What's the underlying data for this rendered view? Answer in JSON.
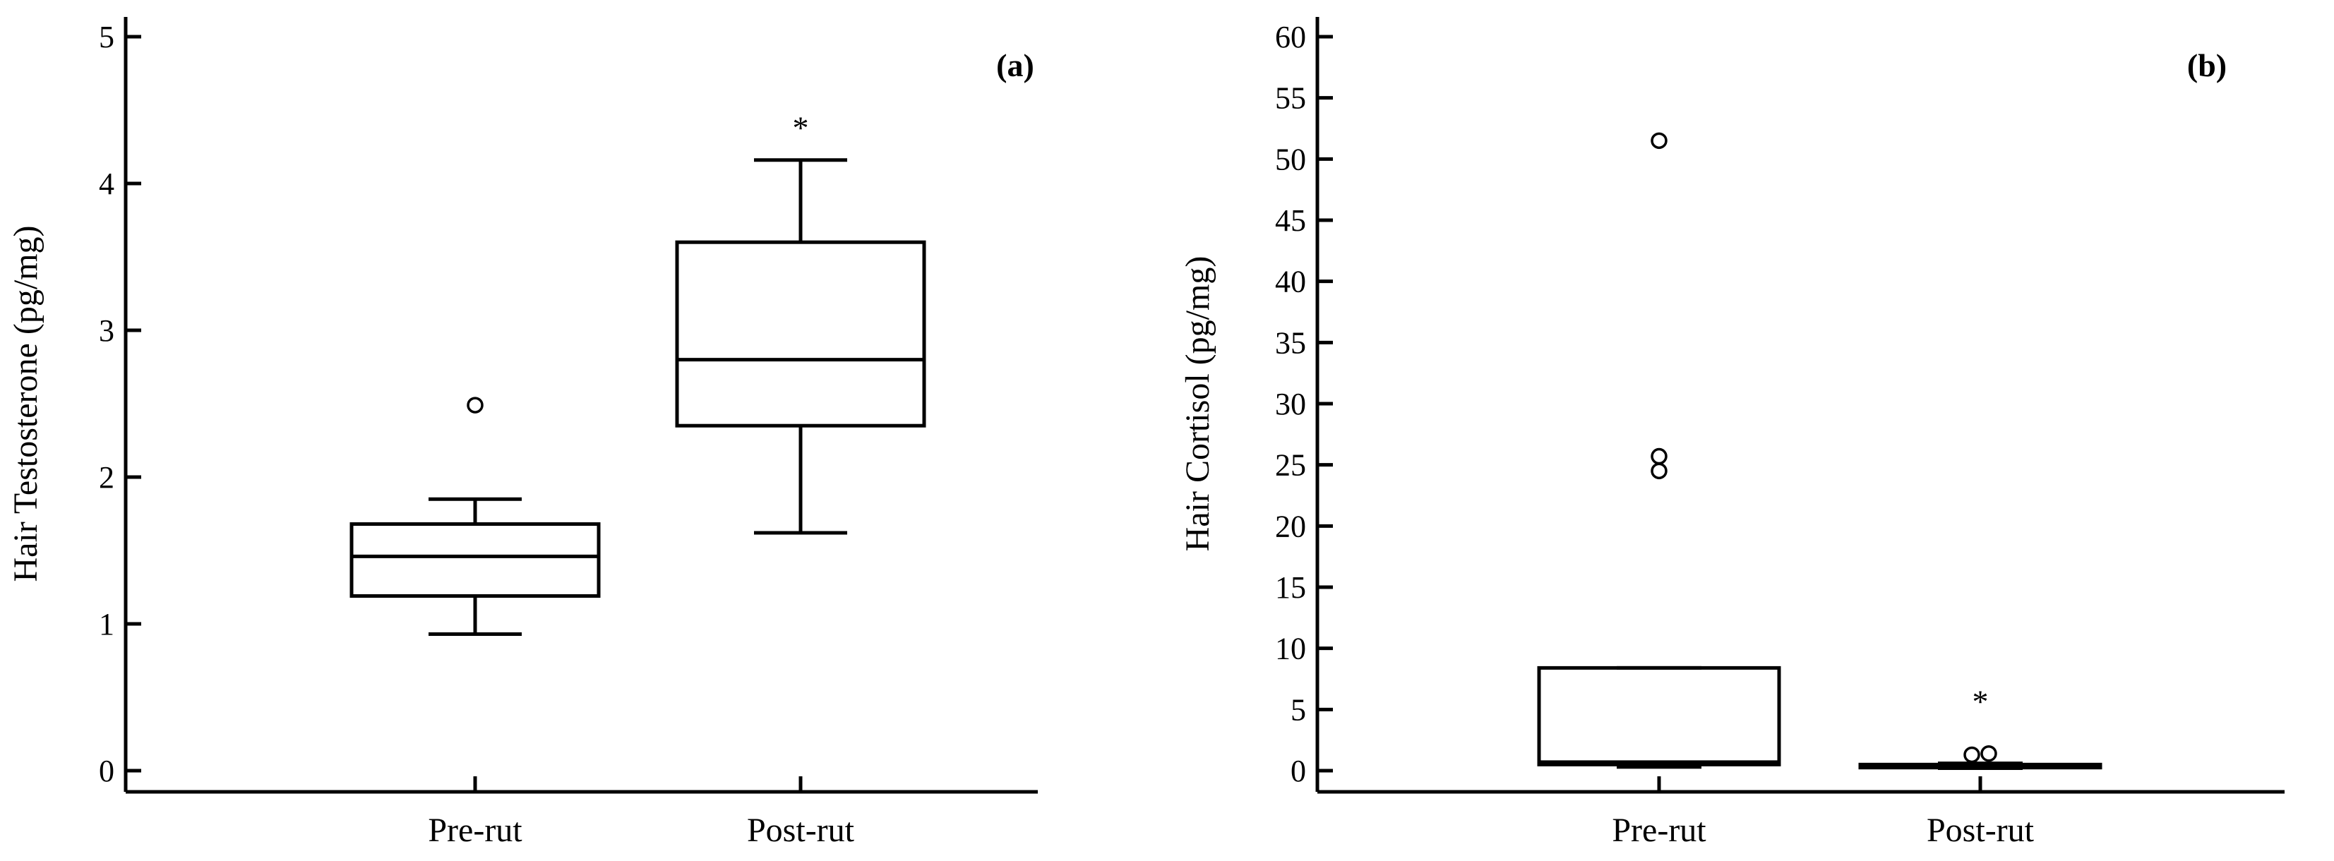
{
  "chart_data": [
    {
      "type": "box",
      "panel_label": "(a)",
      "ylabel": "Hair Testosterone (pg/mg)",
      "xlabel": "",
      "ylim": [
        0,
        5
      ],
      "yticks": [
        "0",
        "1",
        "2",
        "3",
        "4",
        "5"
      ],
      "categories": [
        "Pre-rut",
        "Post-rut"
      ],
      "groups": [
        {
          "category": "Pre-rut",
          "whisker_low": 0.93,
          "q1": 1.19,
          "median": 1.46,
          "q3": 1.68,
          "whisker_high": 1.85,
          "outliers": [
            2.49
          ],
          "significance": ""
        },
        {
          "category": "Post-rut",
          "whisker_low": 1.62,
          "q1": 2.35,
          "median": 2.8,
          "q3": 3.6,
          "whisker_high": 4.16,
          "outliers": [],
          "significance": "*"
        }
      ]
    },
    {
      "type": "box",
      "panel_label": "(b)",
      "ylabel": "Hair Cortisol (pg/mg)",
      "xlabel": "",
      "ylim": [
        0,
        60
      ],
      "yticks": [
        "0",
        "5",
        "10",
        "15",
        "20",
        "25",
        "30",
        "35",
        "40",
        "45",
        "50",
        "55",
        "60"
      ],
      "categories": [
        "Pre-rut",
        "Post-rut"
      ],
      "groups": [
        {
          "category": "Pre-rut",
          "whisker_low": 0.3,
          "q1": 0.5,
          "median": 0.7,
          "q3": 8.4,
          "whisker_high": 8.4,
          "outliers": [
            24.5,
            25.7,
            51.5
          ],
          "significance": ""
        },
        {
          "category": "Post-rut",
          "whisker_low": 0.2,
          "q1": 0.25,
          "median": 0.35,
          "q3": 0.5,
          "whisker_high": 0.6,
          "outliers": [
            1.3,
            1.4
          ],
          "significance": "*"
        }
      ]
    }
  ]
}
